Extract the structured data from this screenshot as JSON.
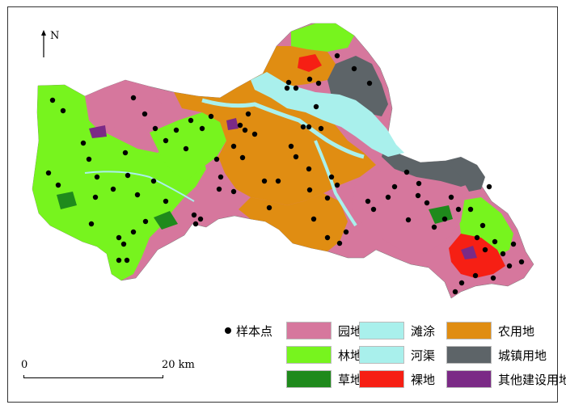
{
  "north": {
    "label": "N"
  },
  "legend": {
    "sample_point_label": "样本点",
    "items": [
      {
        "key": "garden",
        "label": "园地",
        "color": "#d6779d"
      },
      {
        "key": "mudflat",
        "label": "滩涂",
        "color": "#a9f0ec"
      },
      {
        "key": "farmland",
        "label": "农用地",
        "color": "#e08d12"
      },
      {
        "key": "forest",
        "label": "林地",
        "color": "#77f41e"
      },
      {
        "key": "river",
        "label": "河渠",
        "color": "#a9f0ec"
      },
      {
        "key": "urban",
        "label": "城镇用地",
        "color": "#5d6468"
      },
      {
        "key": "grass",
        "label": "草地",
        "color": "#1f8a1c"
      },
      {
        "key": "bare",
        "label": "裸地",
        "color": "#f61f14"
      },
      {
        "key": "other",
        "label": "其他建设用地",
        "color": "#7b2a86"
      }
    ]
  },
  "scale_bar": {
    "start_label": "0",
    "end_label": "20 km"
  }
}
